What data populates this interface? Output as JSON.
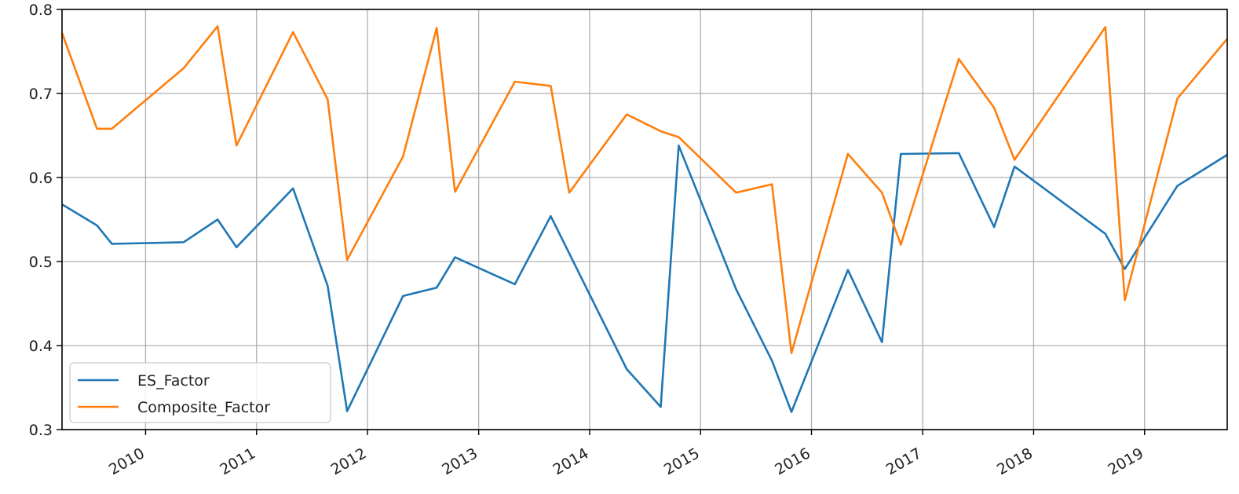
{
  "chart_data": {
    "type": "line",
    "title": "",
    "xlabel": "",
    "ylabel": "",
    "xlim": [
      "2009-04-01",
      "2019-09-30"
    ],
    "ylim": [
      0.3,
      0.8
    ],
    "grid": true,
    "legend_position": "lower-left",
    "y_ticks": [
      0.3,
      0.4,
      0.5,
      0.6,
      0.7,
      0.8
    ],
    "y_tick_labels": [
      "0.3",
      "0.4",
      "0.5",
      "0.6",
      "0.7",
      "0.8"
    ],
    "x_ticks": [
      "2010-01-01",
      "2011-01-01",
      "2012-01-01",
      "2013-01-01",
      "2014-01-01",
      "2015-01-01",
      "2016-01-01",
      "2017-01-01",
      "2018-01-01",
      "2019-01-01"
    ],
    "x_tick_labels": [
      "2010",
      "2011",
      "2012",
      "2013",
      "2014",
      "2015",
      "2016",
      "2017",
      "2018",
      "2019"
    ],
    "series": [
      {
        "name": "ES_Factor",
        "color": "#1f77b4",
        "points": [
          [
            "2009-04-01",
            0.568
          ],
          [
            "2009-07-25",
            0.543
          ],
          [
            "2009-09-12",
            0.521
          ],
          [
            "2010-05-06",
            0.523
          ],
          [
            "2010-08-26",
            0.55
          ],
          [
            "2010-10-27",
            0.517
          ],
          [
            "2011-05-01",
            0.587
          ],
          [
            "2011-08-23",
            0.471
          ],
          [
            "2011-10-26",
            0.322
          ],
          [
            "2012-04-27",
            0.459
          ],
          [
            "2012-08-16",
            0.469
          ],
          [
            "2012-10-15",
            0.505
          ],
          [
            "2013-04-30",
            0.473
          ],
          [
            "2013-08-26",
            0.554
          ],
          [
            "2014-05-03",
            0.372
          ],
          [
            "2014-08-23",
            0.327
          ],
          [
            "2014-10-21",
            0.638
          ],
          [
            "2015-04-28",
            0.467
          ],
          [
            "2015-08-24",
            0.382
          ],
          [
            "2015-10-27",
            0.321
          ],
          [
            "2016-04-30",
            0.49
          ],
          [
            "2016-08-20",
            0.404
          ],
          [
            "2016-10-21",
            0.628
          ],
          [
            "2017-04-30",
            0.629
          ],
          [
            "2017-08-24",
            0.541
          ],
          [
            "2017-10-30",
            0.613
          ],
          [
            "2018-08-25",
            0.533
          ],
          [
            "2018-10-28",
            0.491
          ],
          [
            "2019-04-19",
            0.59
          ],
          [
            "2019-09-30",
            0.627
          ]
        ]
      },
      {
        "name": "Composite_Factor",
        "color": "#ff7f0e",
        "points": [
          [
            "2009-04-01",
            0.772
          ],
          [
            "2009-07-25",
            0.658
          ],
          [
            "2009-09-12",
            0.658
          ],
          [
            "2010-05-06",
            0.73
          ],
          [
            "2010-08-26",
            0.78
          ],
          [
            "2010-10-27",
            0.638
          ],
          [
            "2011-05-01",
            0.773
          ],
          [
            "2011-08-23",
            0.693
          ],
          [
            "2011-10-26",
            0.502
          ],
          [
            "2012-04-27",
            0.625
          ],
          [
            "2012-08-16",
            0.778
          ],
          [
            "2012-10-15",
            0.583
          ],
          [
            "2013-04-30",
            0.714
          ],
          [
            "2013-08-26",
            0.709
          ],
          [
            "2013-10-26",
            0.582
          ],
          [
            "2014-05-03",
            0.675
          ],
          [
            "2014-08-23",
            0.655
          ],
          [
            "2014-10-21",
            0.648
          ],
          [
            "2015-04-28",
            0.582
          ],
          [
            "2015-08-24",
            0.592
          ],
          [
            "2015-10-27",
            0.391
          ],
          [
            "2016-04-30",
            0.628
          ],
          [
            "2016-08-20",
            0.582
          ],
          [
            "2016-10-21",
            0.52
          ],
          [
            "2017-04-30",
            0.741
          ],
          [
            "2017-08-24",
            0.683
          ],
          [
            "2017-10-30",
            0.621
          ],
          [
            "2018-08-25",
            0.779
          ],
          [
            "2018-10-28",
            0.454
          ],
          [
            "2019-04-19",
            0.694
          ],
          [
            "2019-09-30",
            0.765
          ]
        ]
      }
    ]
  }
}
